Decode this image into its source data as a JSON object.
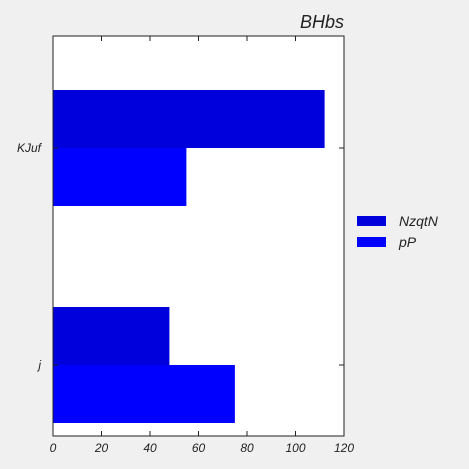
{
  "chart_data": {
    "type": "bar",
    "orientation": "horizontal",
    "title": "BHbs",
    "xlabel": "",
    "ylabel": "",
    "categories": [
      "KJuf",
      "j"
    ],
    "series": [
      {
        "name": "NzqtN",
        "values": [
          112,
          48
        ],
        "color": "#0000dd"
      },
      {
        "name": "pP",
        "values": [
          55,
          75
        ],
        "color": "#0000ff"
      }
    ],
    "xlim": [
      0,
      120
    ],
    "xticks": [
      0,
      20,
      40,
      60,
      80,
      100,
      120
    ],
    "grid": false,
    "legend": "center-right"
  }
}
